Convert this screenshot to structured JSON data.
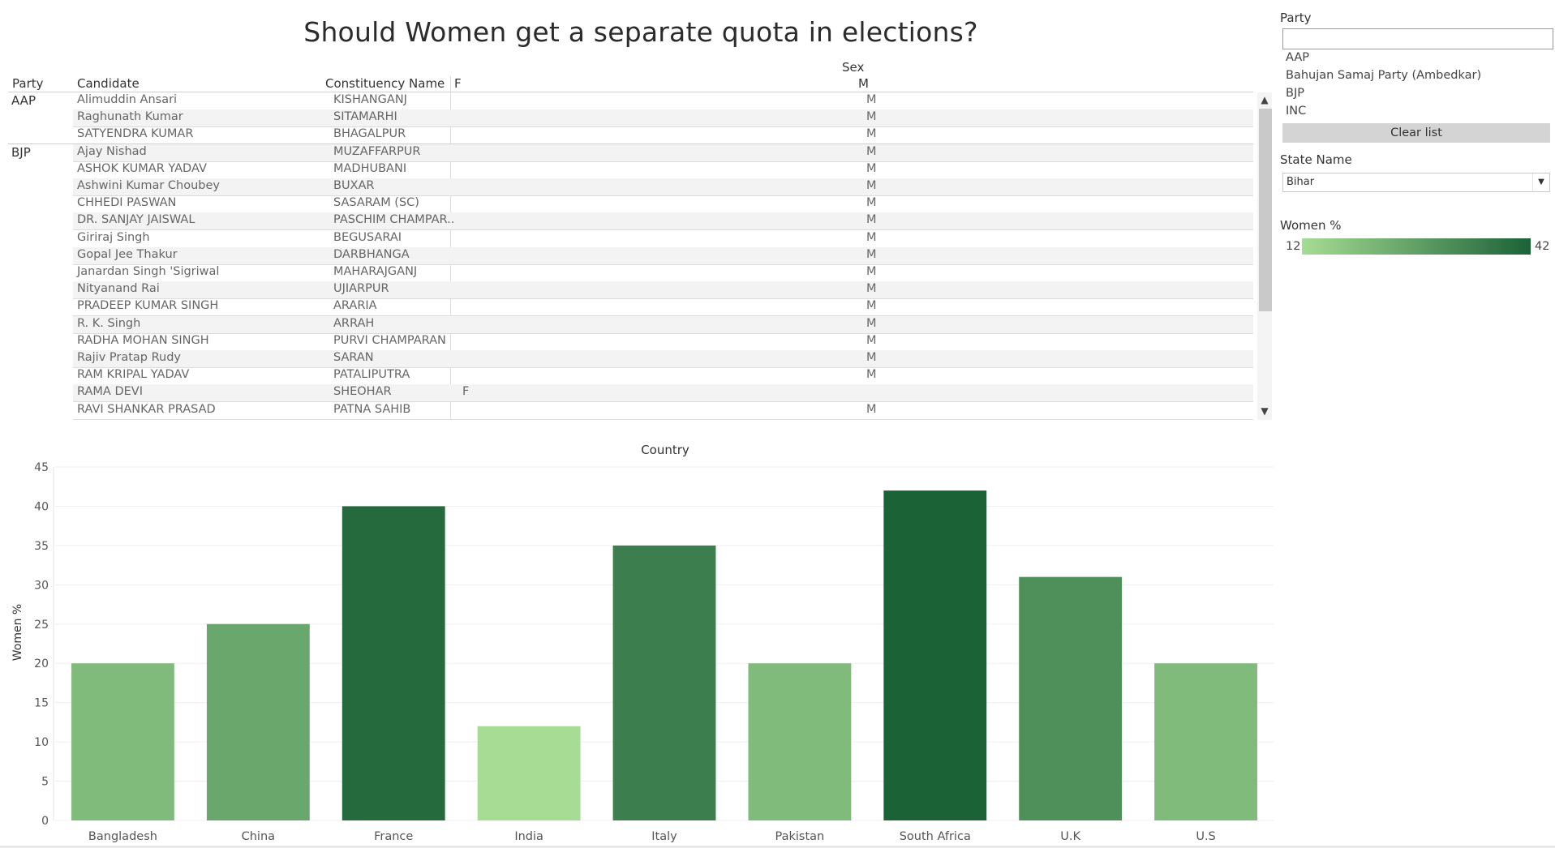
{
  "title": "Should Women get a separate quota in elections?",
  "table": {
    "sex_header": "Sex",
    "columns": [
      "Party",
      "Candidate",
      "Constituency Name",
      "F",
      "M"
    ],
    "groups": [
      {
        "party": "AAP",
        "rows": [
          {
            "candidate": "Alimuddin Ansari",
            "constituency": "KISHANGANJ",
            "sex": "M"
          },
          {
            "candidate": "Raghunath Kumar",
            "constituency": "SITAMARHI",
            "sex": "M"
          },
          {
            "candidate": "SATYENDRA KUMAR",
            "constituency": "BHAGALPUR",
            "sex": "M"
          }
        ]
      },
      {
        "party": "BJP",
        "rows": [
          {
            "candidate": "Ajay Nishad",
            "constituency": "MUZAFFARPUR",
            "sex": "M"
          },
          {
            "candidate": "ASHOK KUMAR YADAV",
            "constituency": "MADHUBANI",
            "sex": "M"
          },
          {
            "candidate": "Ashwini Kumar Choubey",
            "constituency": "BUXAR",
            "sex": "M"
          },
          {
            "candidate": "CHHEDI PASWAN",
            "constituency": "SASARAM (SC)",
            "sex": "M"
          },
          {
            "candidate": "DR. SANJAY JAISWAL",
            "constituency": "PASCHIM CHAMPAR..",
            "sex": "M"
          },
          {
            "candidate": "Giriraj Singh",
            "constituency": "BEGUSARAI",
            "sex": "M"
          },
          {
            "candidate": "Gopal Jee Thakur",
            "constituency": "DARBHANGA",
            "sex": "M"
          },
          {
            "candidate": "Janardan Singh 'Sigriwal",
            "constituency": "MAHARAJGANJ",
            "sex": "M"
          },
          {
            "candidate": "Nityanand Rai",
            "constituency": "UJIARPUR",
            "sex": "M"
          },
          {
            "candidate": "PRADEEP KUMAR SINGH",
            "constituency": "ARARIA",
            "sex": "M"
          },
          {
            "candidate": "R. K. Singh",
            "constituency": "ARRAH",
            "sex": "M"
          },
          {
            "candidate": "RADHA MOHAN SINGH",
            "constituency": "PURVI CHAMPARAN",
            "sex": "M"
          },
          {
            "candidate": "Rajiv Pratap Rudy",
            "constituency": "SARAN",
            "sex": "M"
          },
          {
            "candidate": "RAM KRIPAL YADAV",
            "constituency": "PATALIPUTRA",
            "sex": "M"
          },
          {
            "candidate": "RAMA DEVI",
            "constituency": "SHEOHAR",
            "sex": "F"
          },
          {
            "candidate": "RAVI SHANKAR PRASAD",
            "constituency": "PATNA SAHIB",
            "sex": "M"
          }
        ]
      }
    ]
  },
  "filters": {
    "party_label": "Party",
    "party_search_value": "",
    "party_items": [
      "AAP",
      "Bahujan Samaj Party  (Ambedkar)",
      "BJP",
      "INC"
    ],
    "clear_label": "Clear list",
    "state_label": "State Name",
    "state_value": "Bihar",
    "legend_label": "Women %",
    "legend_min": "12",
    "legend_max": "42",
    "legend_colors": [
      "#a6dc94",
      "#1c6237"
    ]
  },
  "icons": {
    "scroll_up": "chevron-up-icon",
    "scroll_down": "chevron-down-icon",
    "dropdown": "caret-down-icon"
  },
  "chart_data": {
    "type": "bar",
    "title": "Country",
    "xlabel": "",
    "ylabel": "Women %",
    "categories": [
      "Bangladesh",
      "China",
      "France",
      "India",
      "Italy",
      "Pakistan",
      "South Africa",
      "U.K",
      "U.S"
    ],
    "values": [
      20,
      25,
      40,
      12,
      35,
      20,
      42,
      31,
      20
    ],
    "ylim": [
      0,
      45
    ],
    "yticks": [
      0,
      5,
      10,
      15,
      20,
      25,
      30,
      35,
      40,
      45
    ],
    "color_scale": {
      "min": 12,
      "max": 42,
      "colors": [
        "#a6dc94",
        "#1c6237"
      ]
    },
    "grid": true
  }
}
